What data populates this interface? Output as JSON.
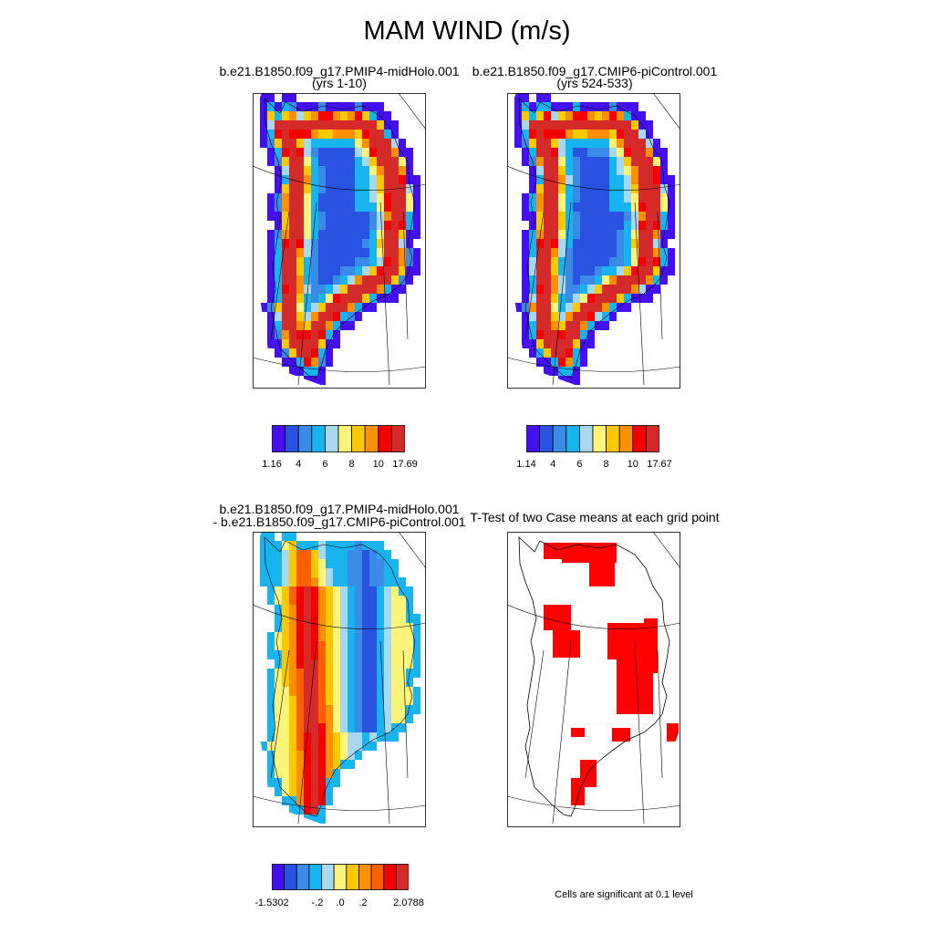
{
  "title": "MAM WIND (m/s)",
  "panels": [
    {
      "id": "p1",
      "title_line1": "b.e21.B1850.f09_g17.PMIP4-midHolo.001",
      "title_line2": "(yrs 1-10)"
    },
    {
      "id": "p2",
      "title_line1": "b.e21.B1850.f09_g17.CMIP6-piControl.001",
      "title_line2": "(yrs 524-533)"
    },
    {
      "id": "p3",
      "title_line1": "b.e21.B1850.f09_g17.PMIP4-midHolo.001",
      "title_line2": "- b.e21.B1850.f09_g17.CMIP6-piControl.001"
    },
    {
      "id": "p4",
      "title_line1": "T-Test of two Case means at each grid point",
      "title_line2": ""
    }
  ],
  "colorbars": [
    {
      "id": "cb1",
      "labels": [
        "1.16",
        "4",
        "6",
        "8",
        "10",
        "17.69"
      ],
      "colors": [
        "#4410f0",
        "#2a52e0",
        "#3a8ae8",
        "#17b4f0",
        "#a8d8f0",
        "#fff47a",
        "#fcc800",
        "#fc9000",
        "#f50000",
        "#d42a2a"
      ]
    },
    {
      "id": "cb2",
      "labels": [
        "1.14",
        "4",
        "6",
        "8",
        "10",
        "17.67"
      ],
      "colors": [
        "#4410f0",
        "#2a52e0",
        "#3a8ae8",
        "#17b4f0",
        "#a8d8f0",
        "#fff47a",
        "#fcc800",
        "#fc9000",
        "#f50000",
        "#d42a2a"
      ]
    },
    {
      "id": "cb3",
      "labels": [
        "-1.5302",
        "-.2",
        ".0",
        ".2",
        "2.0788"
      ],
      "colors": [
        "#4410f0",
        "#2a52e0",
        "#3a8ae8",
        "#17b4f0",
        "#a8d8f0",
        "#fff47a",
        "#fcc800",
        "#fc9000",
        "#fc6000",
        "#f50000",
        "#d42a2a"
      ]
    }
  ],
  "significance_note": "Cells are significant at 0.1 level",
  "significance_color": "#ff0000"
}
